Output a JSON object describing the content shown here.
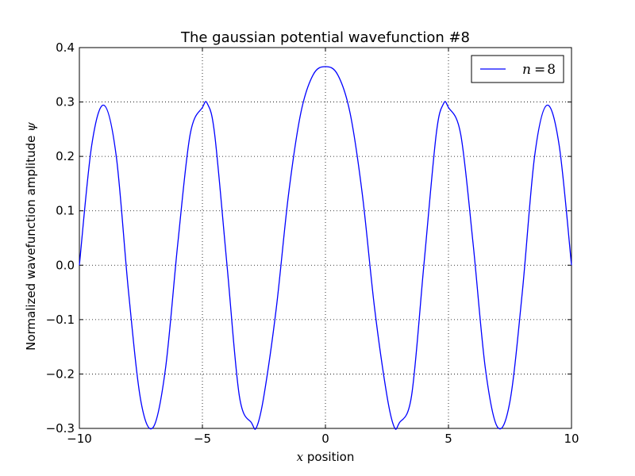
{
  "chart_data": {
    "type": "line",
    "title": "The gaussian potential wavefunction #8",
    "xlabel": {
      "math": "x",
      "text": " position"
    },
    "ylabel": {
      "text": "Normalized wavefunction amplitude ",
      "math": "ψ"
    },
    "xlim": [
      -10,
      10
    ],
    "ylim": [
      -0.3,
      0.4
    ],
    "xticks": [
      -10,
      -5,
      0,
      5,
      10
    ],
    "xtick_labels": [
      "−10",
      "−5",
      "0",
      "5",
      "10"
    ],
    "yticks": [
      -0.3,
      -0.2,
      -0.1,
      0.0,
      0.1,
      0.2,
      0.3,
      0.4
    ],
    "ytick_labels": [
      "−0.3",
      "−0.2",
      "−0.1",
      "0.0",
      "0.1",
      "0.2",
      "0.3",
      "0.4"
    ],
    "grid": true,
    "legend_position": "top-right",
    "series": [
      {
        "name": "n = 8",
        "name_parts": {
          "var": "n",
          "eq": "=",
          "num": "8"
        },
        "color": "#0000ff",
        "x": [
          -10.0,
          -9.5,
          -9.0,
          -8.5,
          -8.0,
          -7.5,
          -7.0,
          -6.5,
          -6.0,
          -5.5,
          -5.0,
          -4.8,
          -4.5,
          -4.0,
          -3.5,
          -3.0,
          -2.8,
          -2.5,
          -2.0,
          -1.5,
          -1.0,
          -0.5,
          0.0,
          0.5,
          1.0,
          1.5,
          2.0,
          2.5,
          2.8,
          3.0,
          3.5,
          4.0,
          4.5,
          4.8,
          5.0,
          5.5,
          6.0,
          6.5,
          7.0,
          7.5,
          8.0,
          8.5,
          9.0,
          9.5,
          10.0
        ],
        "y": [
          0.0,
          0.22,
          0.294,
          0.2,
          -0.05,
          -0.25,
          -0.298,
          -0.19,
          0.04,
          0.24,
          0.29,
          0.297,
          0.24,
          0.0,
          -0.24,
          -0.29,
          -0.298,
          -0.24,
          -0.08,
          0.13,
          0.28,
          0.35,
          0.365,
          0.35,
          0.28,
          0.13,
          -0.08,
          -0.24,
          -0.298,
          -0.29,
          -0.24,
          0.0,
          0.24,
          0.297,
          0.29,
          0.24,
          0.04,
          -0.19,
          -0.298,
          -0.25,
          -0.05,
          0.2,
          0.294,
          0.22,
          0.0
        ]
      }
    ]
  }
}
